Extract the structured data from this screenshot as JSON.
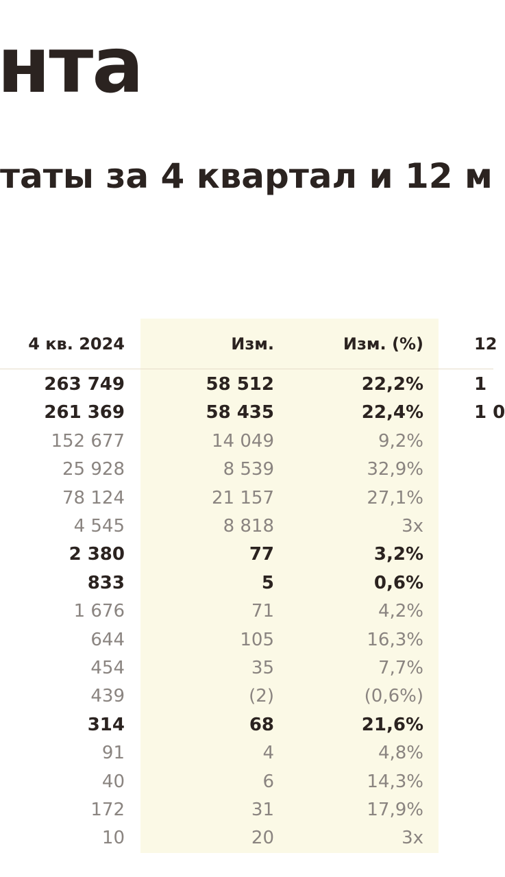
{
  "header": {
    "logo": "нта",
    "title": "таты за 4 квартал и 12 м"
  },
  "table": {
    "columns": [
      "4 кв. 2024",
      "Изм.",
      "Изм. (%)",
      "12"
    ],
    "rows": [
      {
        "cells": [
          "263 749",
          "58 512",
          "22,2%",
          "1"
        ],
        "bold": true
      },
      {
        "cells": [
          "261 369",
          "58 435",
          "22,4%",
          "1 0"
        ],
        "bold": true
      },
      {
        "cells": [
          "152 677",
          "14 049",
          "9,2%"
        ],
        "bold": false
      },
      {
        "cells": [
          "25 928",
          "8 539",
          "32,9%"
        ],
        "bold": false
      },
      {
        "cells": [
          "78 124",
          "21 157",
          "27,1%"
        ],
        "bold": false
      },
      {
        "cells": [
          "4 545",
          "8 818",
          "3x"
        ],
        "bold": false
      },
      {
        "cells": [
          "2 380",
          "77",
          "3,2%"
        ],
        "bold": true
      },
      {
        "cells": [
          "833",
          "5",
          "0,6%"
        ],
        "bold": true
      },
      {
        "cells": [
          "1 676",
          "71",
          "4,2%"
        ],
        "bold": false
      },
      {
        "cells": [
          "644",
          "105",
          "16,3%"
        ],
        "bold": false
      },
      {
        "cells": [
          "454",
          "35",
          "7,7%"
        ],
        "bold": false
      },
      {
        "cells": [
          "439",
          "(2)",
          "(0,6%)"
        ],
        "bold": false
      },
      {
        "cells": [
          "314",
          "68",
          "21,6%"
        ],
        "bold": true
      },
      {
        "cells": [
          "91",
          "4",
          "4,8%"
        ],
        "bold": false
      },
      {
        "cells": [
          "40",
          "6",
          "14,3%"
        ],
        "bold": false
      },
      {
        "cells": [
          "172",
          "31",
          "17,9%"
        ],
        "bold": false
      },
      {
        "cells": [
          "10",
          "20",
          "3x"
        ],
        "bold": false
      }
    ]
  }
}
